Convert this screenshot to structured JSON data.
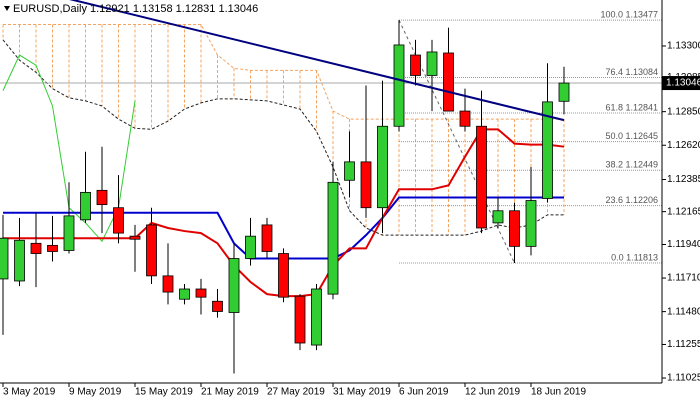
{
  "chart_data": {
    "type": "candlestick",
    "title": "EURUSD,Daily  1.12921 1.13158 1.12831 1.13046",
    "categories": [
      "3 May 2019",
      null,
      null,
      null,
      "9 May 2019",
      null,
      null,
      null,
      "15 May 2019",
      null,
      null,
      null,
      "21 May 2019",
      null,
      null,
      null,
      "27 May 2019",
      null,
      null,
      null,
      "31 May 2019",
      null,
      null,
      null,
      "6 Jun 2019",
      null,
      null,
      null,
      "12 Jun 2019",
      null,
      null,
      null,
      "18 Jun 2019",
      null,
      null
    ],
    "open": [
      1.11704,
      1.1169,
      1.11948,
      1.11934,
      1.11899,
      1.12109,
      1.12311,
      1.12192,
      1.11997,
      1.12074,
      1.11725,
      1.11565,
      1.11635,
      1.11551,
      1.11474,
      1.11844,
      1.12074,
      1.11878,
      1.11586,
      1.11251,
      1.116,
      1.1238,
      1.12506,
      1.12192,
      1.1275,
      1.13238,
      1.13098,
      1.13252,
      1.12854,
      1.1275,
      1.12088,
      1.12171,
      1.11927,
      1.12255,
      1.12921
    ],
    "high": [
      1.12143,
      1.12122,
      1.12157,
      1.12136,
      1.12366,
      1.12575,
      1.1261,
      1.12415,
      1.12074,
      1.12192,
      1.11948,
      1.11669,
      1.11704,
      1.11635,
      1.11948,
      1.12122,
      1.12122,
      1.11913,
      1.116,
      1.11669,
      1.12506,
      1.12715,
      1.13029,
      1.13063,
      1.13477,
      1.13342,
      1.13342,
      1.13426,
      1.13008,
      1.12994,
      1.12262,
      1.12227,
      1.12471,
      1.13182,
      1.13158
    ],
    "low": [
      1.11321,
      1.11655,
      1.11648,
      1.11823,
      1.11878,
      1.12088,
      1.12018,
      1.11948,
      1.11753,
      1.11669,
      1.1153,
      1.1153,
      1.1146,
      1.11439,
      1.11056,
      1.11795,
      1.11844,
      1.11544,
      1.11216,
      1.11216,
      1.11565,
      1.12262,
      1.12122,
      1.12018,
      1.12715,
      1.13029,
      1.12854,
      1.12854,
      1.12715,
      1.12018,
      1.12053,
      1.11813,
      1.11865,
      1.12227,
      1.12831
    ],
    "close": [
      1.11983,
      1.11969,
      1.11878,
      1.11892,
      1.12136,
      1.12297,
      1.12213,
      1.12018,
      1.11976,
      1.11725,
      1.11614,
      1.11635,
      1.11579,
      1.11481,
      1.11844,
      1.11997,
      1.11892,
      1.11579,
      1.11265,
      1.11635,
      1.12366,
      1.12506,
      1.12192,
      1.1275,
      1.13307,
      1.13098,
      1.13259,
      1.12854,
      1.1275,
      1.12053,
      1.12171,
      1.11927,
      1.12241,
      1.12917,
      1.13046
    ],
    "up_color": "#32cd32",
    "down_color": "#ff0000",
    "cloud": {
      "color": "#f4a460",
      "upper": [
        1.13447,
        1.13447,
        1.13447,
        1.13447,
        1.13447,
        1.13447,
        1.13447,
        1.13447,
        1.13447,
        1.13447,
        1.13447,
        1.13447,
        1.13447,
        1.13238,
        1.13147,
        1.13133,
        1.13133,
        1.13133,
        1.13133,
        1.13133,
        1.12854,
        1.12799,
        1.12799,
        1.12799,
        1.12799,
        1.12799,
        1.12799,
        1.12799,
        1.12799,
        1.12799,
        1.12799,
        1.12799,
        1.12799,
        1.12799,
        1.12799
      ],
      "lower": [
        1.13342,
        1.13203,
        1.13119,
        1.13008,
        1.12945,
        1.12924,
        1.12889,
        1.12799,
        1.12736,
        1.12729,
        1.12785,
        1.12868,
        1.1291,
        1.12938,
        1.12938,
        1.12931,
        1.12924,
        1.12896,
        1.12868,
        1.12715,
        1.12471,
        1.12171,
        1.12053,
        1.12004,
        1.12004,
        1.12004,
        1.12004,
        1.12004,
        1.12004,
        1.12032,
        1.12074,
        1.12053,
        1.12074,
        1.12143,
        1.12143
      ],
      "upper_color": "#f4a460",
      "lower_color": "#222222"
    },
    "lines": [
      {
        "color": "#32cd32",
        "width": 1,
        "values": [
          1.12994,
          1.13238,
          1.13168,
          1.12889,
          1.12192,
          1.12088,
          1.11962,
          1.12192,
          1.12924,
          null,
          null,
          null,
          null,
          null,
          null,
          null,
          null,
          null,
          null,
          null,
          null,
          null,
          null,
          null,
          null,
          null,
          null,
          null,
          null,
          null,
          null,
          null,
          null,
          null,
          null
        ]
      },
      {
        "color": "#0000cd",
        "width": 2,
        "values": [
          1.12157,
          1.12157,
          1.12157,
          1.12157,
          1.12157,
          1.12157,
          1.12157,
          1.12157,
          1.12157,
          1.12157,
          1.12157,
          1.12157,
          1.12157,
          1.12157,
          1.11948,
          1.11844,
          1.11844,
          1.11844,
          1.11844,
          1.11844,
          1.11844,
          1.11899,
          1.12004,
          1.12122,
          1.12262,
          1.12262,
          1.12262,
          1.12262,
          1.12262,
          1.12262,
          1.12262,
          1.12262,
          1.12262,
          1.12262,
          1.12262
        ]
      },
      {
        "color": "#e00000",
        "width": 2,
        "values": [
          1.11983,
          1.11983,
          1.11983,
          1.11983,
          1.11983,
          1.11983,
          1.11983,
          1.11983,
          1.11983,
          1.12088,
          1.12053,
          1.12032,
          1.12018,
          1.11948,
          1.11795,
          1.11683,
          1.116,
          1.11586,
          1.11586,
          1.116,
          1.11795,
          1.11913,
          1.11913,
          1.12122,
          1.12318,
          1.12318,
          1.12318,
          1.12345,
          1.12541,
          1.12729,
          1.12729,
          1.12631,
          1.12624,
          1.12624,
          1.1261
        ]
      }
    ],
    "trendline": {
      "color": "#000080",
      "values": [
        1.13733,
        1.12792
      ]
    },
    "fib": {
      "color": "#999999",
      "levels": [
        {
          "value": 1.13477,
          "label": "100.0 1.13477"
        },
        {
          "value": 1.13084,
          "label": "76.4 1.13084"
        },
        {
          "value": 1.12841,
          "label": "61.8 1.12841"
        },
        {
          "value": 1.12645,
          "label": "50.0 1.12645"
        },
        {
          "value": 1.12449,
          "label": "38.2 1.12449"
        },
        {
          "value": 1.12206,
          "label": "23.6 1.12206"
        },
        {
          "value": 1.11813,
          "label": "0.0 1.11813"
        }
      ]
    },
    "bid": 1.13046,
    "ylim": [
      1.10991,
      1.13615
    ],
    "yticks": [
      {
        "value": 1.133,
        "label": "1.13300"
      },
      {
        "value": 1.13085,
        "label": "1.13085"
      },
      {
        "value": 1.1285,
        "label": "1.12850"
      },
      {
        "value": 1.1262,
        "label": "1.12620"
      },
      {
        "value": 1.12385,
        "label": "1.12385"
      },
      {
        "value": 1.12165,
        "label": "1.12165"
      },
      {
        "value": 1.1194,
        "label": "1.11940"
      },
      {
        "value": 1.1171,
        "label": "1.11710"
      },
      {
        "value": 1.1148,
        "label": "1.11480"
      },
      {
        "value": 1.11255,
        "label": "1.11255"
      },
      {
        "value": 1.11025,
        "label": "1.11025"
      }
    ]
  }
}
